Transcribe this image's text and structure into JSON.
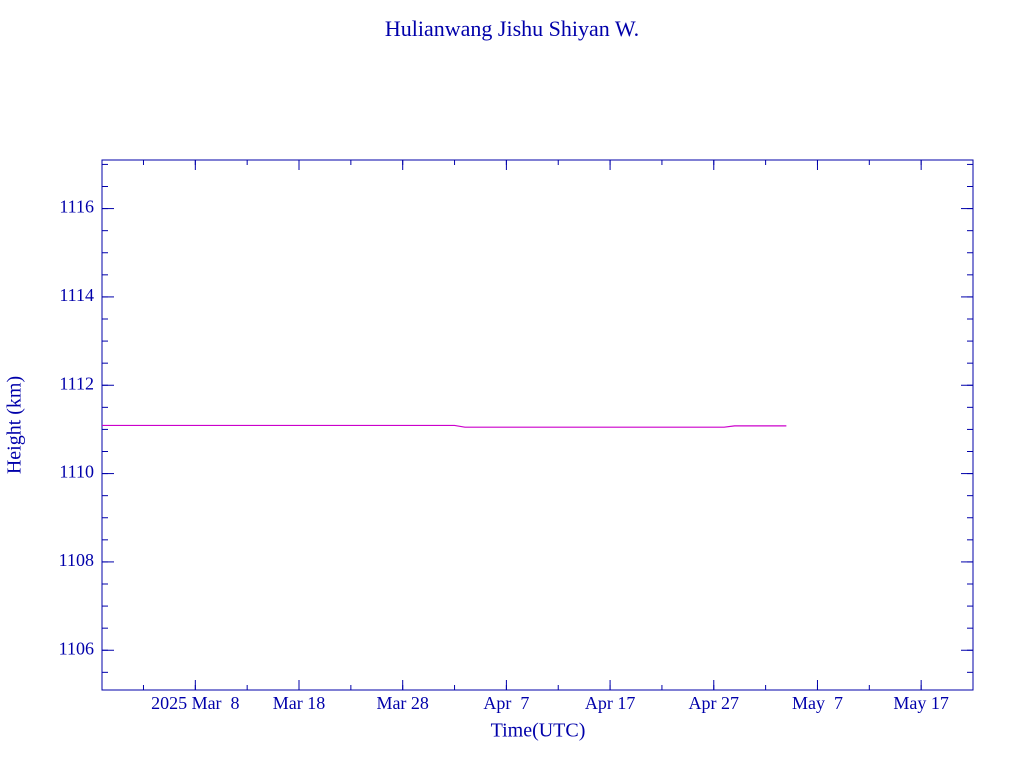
{
  "chart_data": {
    "type": "line",
    "title": "Hulianwang Jishu Shiyan W.",
    "x_label": "Time(UTC)",
    "y_label": "Height (km)",
    "x": [
      "2025-02-27",
      "2025-04-02",
      "2025-04-03",
      "2025-04-28",
      "2025-04-29",
      "2025-05-04"
    ],
    "series": [
      {
        "color": "#cc00cc",
        "values": [
          1111.09,
          1111.09,
          1111.05,
          1111.05,
          1111.08,
          1111.08
        ]
      }
    ],
    "xlim": [
      "2025-02-27",
      "2025-05-22"
    ],
    "xticks": [
      {
        "value": "2025-03-08",
        "label": "2025 Mar  8"
      },
      {
        "value": "2025-03-18",
        "label": "Mar 18"
      },
      {
        "value": "2025-03-28",
        "label": "Mar 28"
      },
      {
        "value": "2025-04-07",
        "label": "Apr  7"
      },
      {
        "value": "2025-04-17",
        "label": "Apr 17"
      },
      {
        "value": "2025-04-27",
        "label": "Apr 27"
      },
      {
        "value": "2025-05-07",
        "label": "May  7"
      },
      {
        "value": "2025-05-17",
        "label": "May 17"
      }
    ],
    "ylim": [
      1105.1,
      1117.1
    ],
    "yticks": [
      1106,
      1108,
      1110,
      1112,
      1114,
      1116
    ],
    "axis_color": "#0000aa",
    "grid": false
  }
}
